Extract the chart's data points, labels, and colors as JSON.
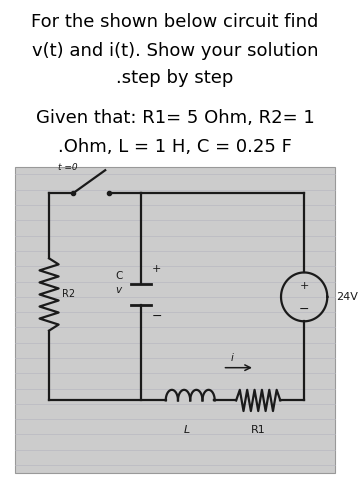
{
  "title_line1": "For the shown below circuit find",
  "title_line2": "v(t) and i(t). Show your solution",
  "title_line3": ".step by step",
  "given_line1": "Given that: R1= 5 Ohm, R2= 1",
  "given_line2": ".Ohm, L = 1 H, C = 0.25 F",
  "bg_color": "#ffffff",
  "circuit_bg": "#cccccc",
  "line_color": "#b8b8c0",
  "text_color": "#000000",
  "circuit_color": "#1a1a1a",
  "title_fontsize": 13.0,
  "given_fontsize": 13.0,
  "circuit_lw": 1.6
}
